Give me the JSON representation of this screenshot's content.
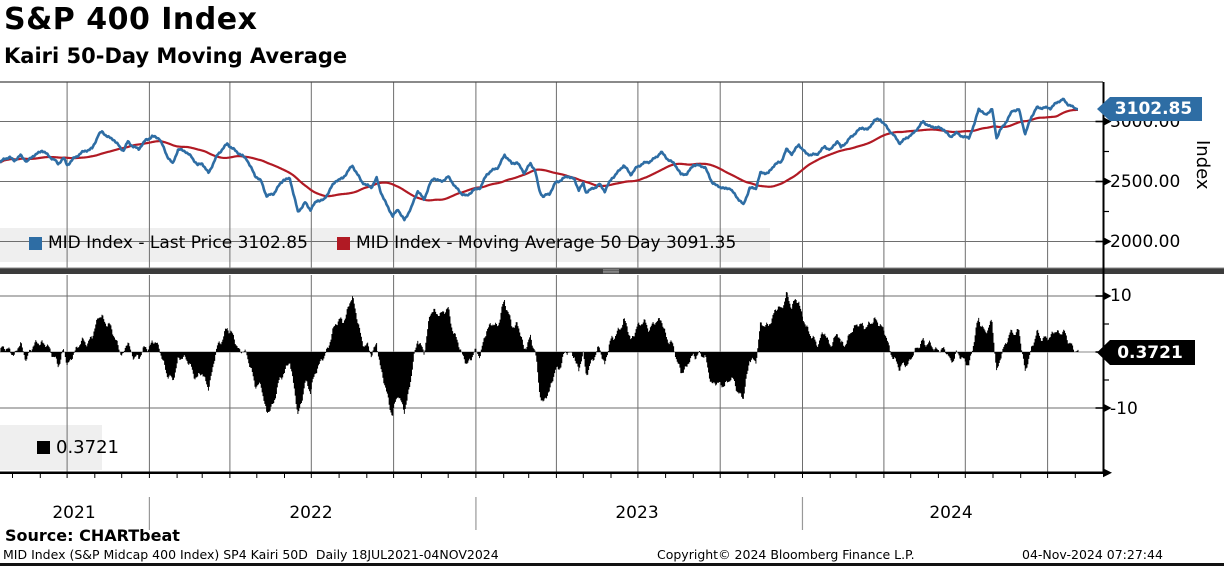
{
  "header": {
    "title": "S&P 400 Index",
    "subtitle": "Kairi 50-Day Moving Average"
  },
  "top_panel": {
    "legend": [
      {
        "label": "MID Index - Last Price 3102.85",
        "color": "#2e6da4"
      },
      {
        "label": "MID Index - Moving Average 50 Day 3091.35",
        "color": "#b11a24"
      }
    ],
    "axis_title": "Index",
    "y_ticks": [
      "3000.00",
      "2500.00",
      "2000.00"
    ],
    "last_price_tag": "3102.85"
  },
  "bottom_panel": {
    "y_ticks": [
      "10",
      "-10"
    ],
    "value_tag": "0.3721",
    "legend_label": "0.3721"
  },
  "x_axis": {
    "years": [
      "2021",
      "2022",
      "2023",
      "2024"
    ]
  },
  "footer": {
    "source": "Source: CHARTbeat",
    "info": "MID Index (S&P Midcap 400 Index) SP4 Kairi 50D  Daily 18JUL2021-04NOV2024",
    "copyright": "Copyright© 2024 Bloomberg Finance L.P.",
    "timestamp": "04-Nov-2024 07:27:44"
  },
  "chart_data": {
    "type": "line",
    "x_range": [
      "2021-07-18",
      "2024-11-04"
    ],
    "grid": "quarterly-vertical",
    "panels": [
      {
        "type": "line",
        "ylabel": "Index",
        "ylim": [
          1780,
          3330
        ],
        "yticks": [
          2000,
          2500,
          3000
        ],
        "series": [
          {
            "name": "MID Index - Last Price",
            "color": "#2e6da4",
            "last": 3102.85,
            "points": [
              [
                "2021-07-18",
                2655
              ],
              [
                "2021-07-23",
                2685
              ],
              [
                "2021-07-29",
                2700
              ],
              [
                "2021-08-03",
                2680
              ],
              [
                "2021-08-10",
                2715
              ],
              [
                "2021-08-17",
                2660
              ],
              [
                "2021-08-24",
                2720
              ],
              [
                "2021-08-31",
                2740
              ],
              [
                "2021-09-03",
                2755
              ],
              [
                "2021-09-10",
                2715
              ],
              [
                "2021-09-17",
                2685
              ],
              [
                "2021-09-21",
                2645
              ],
              [
                "2021-09-27",
                2690
              ],
              [
                "2021-10-01",
                2635
              ],
              [
                "2021-10-08",
                2695
              ],
              [
                "2021-10-15",
                2725
              ],
              [
                "2021-10-22",
                2755
              ],
              [
                "2021-10-29",
                2780
              ],
              [
                "2021-11-05",
                2885
              ],
              [
                "2021-11-09",
                2910
              ],
              [
                "2021-11-15",
                2875
              ],
              [
                "2021-11-22",
                2855
              ],
              [
                "2021-11-30",
                2770
              ],
              [
                "2021-12-03",
                2755
              ],
              [
                "2021-12-08",
                2835
              ],
              [
                "2021-12-14",
                2795
              ],
              [
                "2021-12-20",
                2765
              ],
              [
                "2021-12-28",
                2845
              ],
              [
                "2022-01-04",
                2880
              ],
              [
                "2022-01-12",
                2855
              ],
              [
                "2022-01-21",
                2715
              ],
              [
                "2022-01-27",
                2650
              ],
              [
                "2022-02-02",
                2760
              ],
              [
                "2022-02-10",
                2755
              ],
              [
                "2022-02-17",
                2710
              ],
              [
                "2022-02-24",
                2630
              ],
              [
                "2022-03-01",
                2650
              ],
              [
                "2022-03-08",
                2575
              ],
              [
                "2022-03-18",
                2715
              ],
              [
                "2022-03-29",
                2820
              ],
              [
                "2022-04-08",
                2745
              ],
              [
                "2022-04-20",
                2690
              ],
              [
                "2022-04-29",
                2545
              ],
              [
                "2022-05-06",
                2500
              ],
              [
                "2022-05-12",
                2385
              ],
              [
                "2022-05-20",
                2395
              ],
              [
                "2022-05-31",
                2520
              ],
              [
                "2022-06-07",
                2525
              ],
              [
                "2022-06-16",
                2240
              ],
              [
                "2022-06-24",
                2330
              ],
              [
                "2022-06-30",
                2265
              ],
              [
                "2022-07-08",
                2340
              ],
              [
                "2022-07-15",
                2350
              ],
              [
                "2022-07-22",
                2435
              ],
              [
                "2022-07-29",
                2505
              ],
              [
                "2022-08-05",
                2530
              ],
              [
                "2022-08-11",
                2590
              ],
              [
                "2022-08-16",
                2625
              ],
              [
                "2022-08-26",
                2505
              ],
              [
                "2022-09-06",
                2445
              ],
              [
                "2022-09-12",
                2525
              ],
              [
                "2022-09-16",
                2430
              ],
              [
                "2022-09-23",
                2310
              ],
              [
                "2022-09-30",
                2205
              ],
              [
                "2022-10-06",
                2270
              ],
              [
                "2022-10-13",
                2180
              ],
              [
                "2022-10-21",
                2280
              ],
              [
                "2022-10-28",
                2425
              ],
              [
                "2022-11-04",
                2355
              ],
              [
                "2022-11-11",
                2480
              ],
              [
                "2022-11-15",
                2525
              ],
              [
                "2022-11-23",
                2505
              ],
              [
                "2022-12-01",
                2535
              ],
              [
                "2022-12-09",
                2455
              ],
              [
                "2022-12-16",
                2405
              ],
              [
                "2022-12-22",
                2375
              ],
              [
                "2022-12-30",
                2430
              ],
              [
                "2023-01-06",
                2455
              ],
              [
                "2023-01-13",
                2555
              ],
              [
                "2023-01-26",
                2625
              ],
              [
                "2023-02-02",
                2720
              ],
              [
                "2023-02-10",
                2645
              ],
              [
                "2023-02-16",
                2665
              ],
              [
                "2023-02-24",
                2570
              ],
              [
                "2023-03-03",
                2645
              ],
              [
                "2023-03-08",
                2600
              ],
              [
                "2023-03-13",
                2425
              ],
              [
                "2023-03-17",
                2375
              ],
              [
                "2023-03-24",
                2390
              ],
              [
                "2023-03-31",
                2495
              ],
              [
                "2023-04-14",
                2540
              ],
              [
                "2023-04-21",
                2520
              ],
              [
                "2023-04-26",
                2435
              ],
              [
                "2023-05-01",
                2480
              ],
              [
                "2023-05-04",
                2405
              ],
              [
                "2023-05-12",
                2445
              ],
              [
                "2023-05-19",
                2480
              ],
              [
                "2023-05-25",
                2415
              ],
              [
                "2023-06-02",
                2530
              ],
              [
                "2023-06-15",
                2630
              ],
              [
                "2023-06-23",
                2560
              ],
              [
                "2023-06-30",
                2625
              ],
              [
                "2023-07-14",
                2665
              ],
              [
                "2023-07-27",
                2740
              ],
              [
                "2023-08-04",
                2680
              ],
              [
                "2023-08-11",
                2655
              ],
              [
                "2023-08-18",
                2555
              ],
              [
                "2023-08-25",
                2560
              ],
              [
                "2023-09-01",
                2645
              ],
              [
                "2023-09-14",
                2615
              ],
              [
                "2023-09-22",
                2500
              ],
              [
                "2023-09-27",
                2465
              ],
              [
                "2023-10-06",
                2435
              ],
              [
                "2023-10-12",
                2450
              ],
              [
                "2023-10-20",
                2365
              ],
              [
                "2023-10-27",
                2300
              ],
              [
                "2023-11-03",
                2450
              ],
              [
                "2023-11-10",
                2445
              ],
              [
                "2023-11-15",
                2565
              ],
              [
                "2023-11-24",
                2575
              ],
              [
                "2023-12-01",
                2645
              ],
              [
                "2023-12-08",
                2655
              ],
              [
                "2023-12-14",
                2770
              ],
              [
                "2023-12-20",
                2735
              ],
              [
                "2023-12-28",
                2800
              ],
              [
                "2024-01-05",
                2735
              ],
              [
                "2024-01-17",
                2720
              ],
              [
                "2024-01-26",
                2790
              ],
              [
                "2024-02-02",
                2770
              ],
              [
                "2024-02-09",
                2835
              ],
              [
                "2024-02-13",
                2780
              ],
              [
                "2024-02-23",
                2865
              ],
              [
                "2024-03-01",
                2905
              ],
              [
                "2024-03-08",
                2950
              ],
              [
                "2024-03-14",
                2935
              ],
              [
                "2024-03-21",
                3005
              ],
              [
                "2024-03-28",
                3015
              ],
              [
                "2024-04-04",
                2960
              ],
              [
                "2024-04-12",
                2880
              ],
              [
                "2024-04-19",
                2815
              ],
              [
                "2024-04-26",
                2870
              ],
              [
                "2024-05-03",
                2890
              ],
              [
                "2024-05-10",
                2950
              ],
              [
                "2024-05-15",
                3005
              ],
              [
                "2024-05-23",
                2955
              ],
              [
                "2024-05-31",
                2945
              ],
              [
                "2024-06-07",
                2940
              ],
              [
                "2024-06-14",
                2870
              ],
              [
                "2024-06-21",
                2900
              ],
              [
                "2024-06-28",
                2880
              ],
              [
                "2024-07-05",
                2865
              ],
              [
                "2024-07-11",
                2965
              ],
              [
                "2024-07-16",
                3110
              ],
              [
                "2024-07-23",
                3060
              ],
              [
                "2024-07-31",
                3095
              ],
              [
                "2024-08-05",
                2860
              ],
              [
                "2024-08-09",
                2930
              ],
              [
                "2024-08-16",
                3005
              ],
              [
                "2024-08-23",
                3085
              ],
              [
                "2024-08-30",
                3100
              ],
              [
                "2024-09-06",
                2900
              ],
              [
                "2024-09-13",
                3035
              ],
              [
                "2024-09-19",
                3115
              ],
              [
                "2024-09-27",
                3120
              ],
              [
                "2024-10-04",
                3105
              ],
              [
                "2024-10-14",
                3175
              ],
              [
                "2024-10-18",
                3190
              ],
              [
                "2024-10-23",
                3145
              ],
              [
                "2024-10-31",
                3110
              ],
              [
                "2024-11-04",
                3102.85
              ]
            ]
          },
          {
            "name": "MID Index - Moving Average 50 Day",
            "color": "#b11a24",
            "derived": "50-day trailing moving average of Last Price",
            "last": 3091.35
          }
        ]
      },
      {
        "type": "bar",
        "name": "Kairi 50-Day",
        "color": "#000000",
        "formula": "(price - ma50) / ma50 * 100",
        "ylim": [
          -21,
          13.5
        ],
        "yticks": [
          -10,
          10
        ],
        "last": 0.3721
      }
    ]
  }
}
